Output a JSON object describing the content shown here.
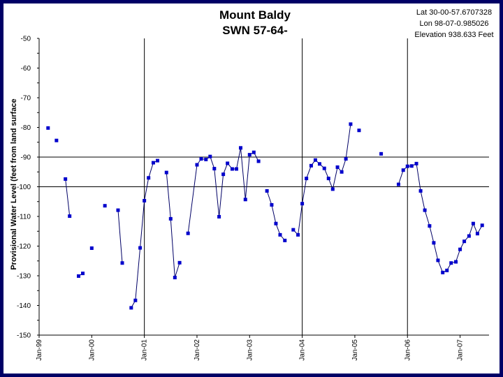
{
  "chart_data": {
    "type": "line",
    "title": "Mount Baldy",
    "subtitle": "SWN 57-64-",
    "info_lines": [
      "Lat 30-00-57.6707328",
      "Lon 98-07-0.985026",
      "Elevation 938.633 Feet"
    ],
    "ylabel": "Provisional Water Level (feet from land surface",
    "ylim": [
      -150,
      -50
    ],
    "yticks": [
      -50,
      -60,
      -70,
      -80,
      -90,
      -100,
      -110,
      -120,
      -130,
      -140,
      -150
    ],
    "x_tick_labels": [
      "Jan-99",
      "Jan-00",
      "Jan-01",
      "Jan-02",
      "Jan-03",
      "Jan-04",
      "Jan-05",
      "Jan-06",
      "Jan-07"
    ],
    "xlim": [
      1999.0,
      2007.55
    ],
    "vertical_lines": [
      2001.0,
      2004.0,
      2006.0
    ],
    "horizontal_lines": [
      -90,
      -100
    ],
    "marker_color": "#0000cc",
    "line_color": "#000066",
    "series": [
      {
        "segments": [
          [
            [
              1999.17,
              -80.2
            ]
          ],
          [
            [
              1999.33,
              -84.4
            ]
          ],
          [
            [
              1999.5,
              -97.4
            ],
            [
              1999.58,
              -109.9
            ]
          ],
          [
            [
              1999.75,
              -130.1
            ],
            [
              1999.83,
              -129.2
            ]
          ],
          [
            [
              2000.0,
              -120.7
            ]
          ],
          [
            [
              2000.25,
              -106.4
            ]
          ],
          [
            [
              2000.5,
              -107.9
            ],
            [
              2000.58,
              -125.7
            ]
          ],
          [
            [
              2000.75,
              -140.8
            ],
            [
              2000.83,
              -138.3
            ],
            [
              2000.92,
              -120.6
            ],
            [
              2001.0,
              -104.7
            ],
            [
              2001.08,
              -97.0
            ],
            [
              2001.17,
              -91.9
            ],
            [
              2001.25,
              -91.2
            ]
          ],
          [
            [
              2001.42,
              -95.2
            ],
            [
              2001.5,
              -110.8
            ],
            [
              2001.58,
              -130.6
            ],
            [
              2001.67,
              -125.6
            ]
          ],
          [
            [
              2001.83,
              -115.7
            ],
            [
              2002.0,
              -92.6
            ],
            [
              2002.08,
              -90.6
            ],
            [
              2002.17,
              -90.8
            ],
            [
              2002.25,
              -89.8
            ],
            [
              2002.33,
              -93.9
            ],
            [
              2002.42,
              -110.1
            ],
            [
              2002.5,
              -95.8
            ],
            [
              2002.58,
              -92.1
            ],
            [
              2002.67,
              -94.0
            ],
            [
              2002.75,
              -94.0
            ],
            [
              2002.83,
              -86.9
            ],
            [
              2002.92,
              -104.3
            ],
            [
              2003.0,
              -89.2
            ],
            [
              2003.08,
              -88.4
            ],
            [
              2003.17,
              -91.4
            ]
          ],
          [
            [
              2003.33,
              -101.4
            ],
            [
              2003.42,
              -106.1
            ],
            [
              2003.5,
              -112.4
            ],
            [
              2003.58,
              -116.2
            ],
            [
              2003.67,
              -118.1
            ]
          ],
          [
            [
              2003.83,
              -114.5
            ],
            [
              2003.92,
              -116.2
            ],
            [
              2004.0,
              -105.7
            ],
            [
              2004.08,
              -97.2
            ],
            [
              2004.17,
              -92.9
            ],
            [
              2004.25,
              -91.0
            ],
            [
              2004.33,
              -92.3
            ],
            [
              2004.42,
              -93.8
            ],
            [
              2004.5,
              -97.2
            ],
            [
              2004.58,
              -100.8
            ],
            [
              2004.67,
              -93.4
            ],
            [
              2004.75,
              -95.0
            ],
            [
              2004.83,
              -90.6
            ],
            [
              2004.92,
              -78.9
            ]
          ],
          [
            [
              2005.08,
              -81.0
            ]
          ],
          [
            [
              2005.5,
              -88.9
            ]
          ],
          [
            [
              2005.83,
              -99.2
            ],
            [
              2005.92,
              -94.4
            ],
            [
              2006.0,
              -93.1
            ],
            [
              2006.08,
              -93.0
            ],
            [
              2006.17,
              -92.2
            ],
            [
              2006.25,
              -101.4
            ],
            [
              2006.33,
              -107.9
            ],
            [
              2006.42,
              -113.2
            ],
            [
              2006.5,
              -118.9
            ],
            [
              2006.58,
              -124.8
            ],
            [
              2006.67,
              -128.9
            ],
            [
              2006.75,
              -128.2
            ],
            [
              2006.83,
              -125.7
            ],
            [
              2006.92,
              -125.3
            ],
            [
              2007.0,
              -121.1
            ],
            [
              2007.08,
              -118.4
            ],
            [
              2007.17,
              -116.6
            ],
            [
              2007.25,
              -112.4
            ],
            [
              2007.33,
              -115.8
            ],
            [
              2007.42,
              -113.0
            ]
          ]
        ]
      }
    ]
  }
}
